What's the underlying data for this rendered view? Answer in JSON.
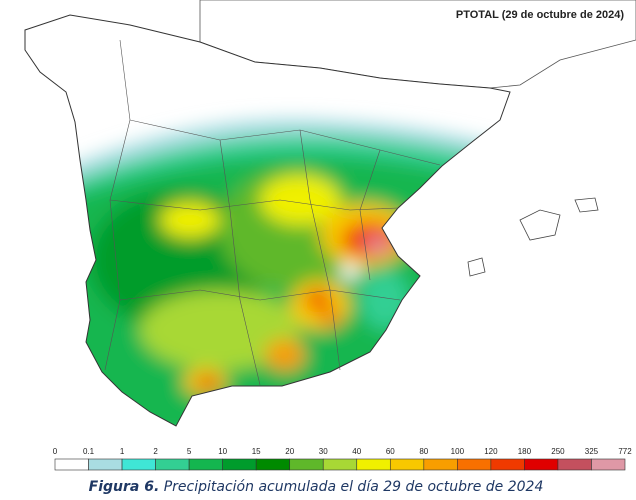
{
  "header": {
    "title": "PTOTAL (29 de octubre de 2024)"
  },
  "legend": {
    "labels": [
      "0",
      "0.1",
      "1",
      "2",
      "5",
      "10",
      "15",
      "20",
      "30",
      "40",
      "60",
      "80",
      "100",
      "120",
      "180",
      "250",
      "325",
      "772"
    ],
    "colors": [
      "#ffffff",
      "#a9dde2",
      "#3fe6d6",
      "#33cf93",
      "#14b64f",
      "#009c2c",
      "#008a00",
      "#5fb82a",
      "#a8d835",
      "#f0f000",
      "#f8c800",
      "#f89e00",
      "#f87000",
      "#f03a00",
      "#e00000",
      "#c4505e",
      "#df98a6",
      "#f2c9d0"
    ]
  },
  "caption": {
    "label": "Figura 6.",
    "text": "Precipitación acumulada el día 29 de octubre de 2024"
  }
}
